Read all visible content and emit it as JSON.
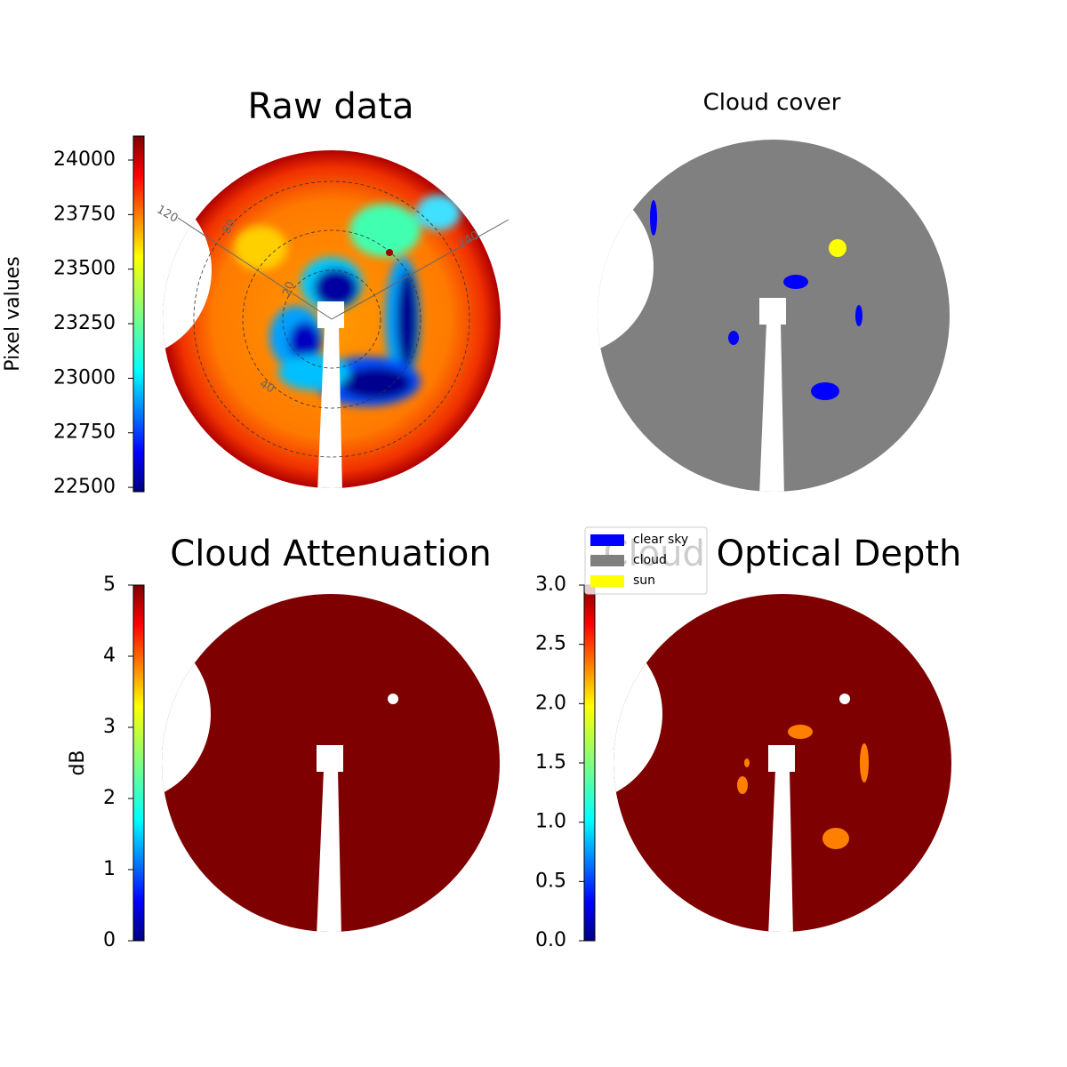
{
  "chart_data": [
    {
      "type": "image",
      "title": "Raw data",
      "colorbar_label": "Pixel values",
      "colormap": "jet",
      "ylim": [
        22480,
        24110
      ],
      "yticks": [
        22500,
        22750,
        23000,
        23250,
        23500,
        23750,
        24000
      ],
      "annotations": [
        "120",
        "80",
        "20",
        "40",
        "240"
      ]
    },
    {
      "type": "image",
      "title": "Cloud cover",
      "color": "#808080",
      "legend": [
        {
          "name": "clear sky",
          "color": "#0000ff"
        },
        {
          "name": "cloud",
          "color": "#808080"
        },
        {
          "name": "sun",
          "color": "#ffff00"
        }
      ]
    },
    {
      "type": "image",
      "title": "Cloud Attenuation",
      "colorbar_label": "dB",
      "colormap": "jet",
      "color": "#7f0000",
      "ylim": [
        0,
        5
      ],
      "yticks": [
        0,
        1,
        2,
        3,
        4,
        5
      ]
    },
    {
      "type": "image",
      "title": "Cloud Optical Depth",
      "colormap": "jet",
      "color": "#7f0000",
      "ylim": [
        0,
        3
      ],
      "yticks": [
        {
          "value": 0,
          "label": "0.0"
        },
        0.5,
        {
          "value": 1,
          "label": "1.0"
        },
        1.5,
        {
          "value": 2,
          "label": "2.0"
        },
        2.5,
        {
          "value": 3,
          "label": "3.0"
        }
      ]
    }
  ]
}
